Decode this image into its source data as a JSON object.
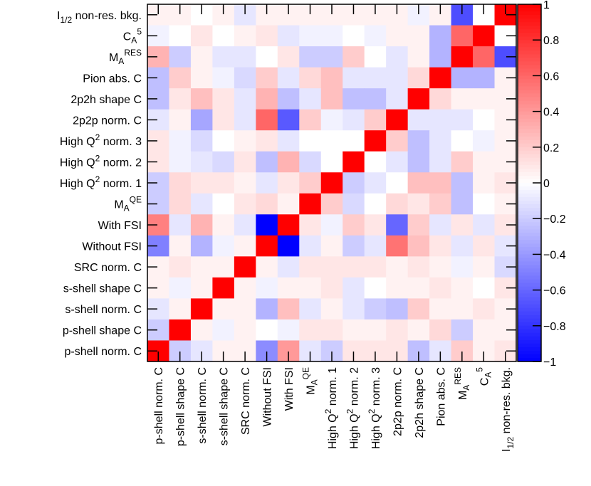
{
  "chart_data": {
    "type": "heatmap",
    "title": "",
    "labels_bottom_to_top": [
      "p-shell norm. C",
      "p-shell shape C",
      "s-shell norm. C",
      "s-shell shape C",
      "SRC norm. C",
      "Without FSI",
      "With FSI",
      "M_A^QE",
      "High Q^2 norm. 1",
      "High Q^2 norm. 2",
      "High Q^2 norm. 3",
      "2p2p norm. C",
      "2p2h shape C",
      "Pion abs. C",
      "M_A^RES",
      "C_A^5",
      "I_1/2 non-res. bkg."
    ],
    "zlim": [
      -1,
      1
    ],
    "colorbar_ticks": [
      "1",
      "0.8",
      "0.6",
      "0.4",
      "0.2",
      "0",
      "−0.2",
      "−0.4",
      "−0.6",
      "−0.8",
      "−1"
    ],
    "matrix_rows_top_to_bottom": [
      [
        0.05,
        0.05,
        0.0,
        0.05,
        -0.1,
        0.05,
        0.05,
        0.05,
        0.05,
        0.05,
        0.05,
        0.05,
        -0.05,
        0.05,
        -0.7,
        0.0,
        1.0
      ],
      [
        -0.05,
        0.0,
        0.1,
        0.0,
        0.05,
        0.1,
        -0.1,
        -0.05,
        -0.05,
        0.0,
        -0.05,
        0.05,
        0.05,
        -0.3,
        0.6,
        1.0,
        0.0
      ],
      [
        0.3,
        -0.2,
        0.05,
        -0.1,
        -0.1,
        0.0,
        0.1,
        -0.2,
        -0.2,
        0.2,
        0.0,
        -0.1,
        0.05,
        -0.3,
        1.0,
        0.6,
        -0.7
      ],
      [
        -0.25,
        0.2,
        0.05,
        -0.05,
        -0.15,
        0.2,
        -0.1,
        0.15,
        0.25,
        -0.1,
        -0.1,
        -0.1,
        0.15,
        1.0,
        -0.3,
        -0.3,
        0.05
      ],
      [
        -0.25,
        0.1,
        0.25,
        0.1,
        -0.1,
        0.3,
        -0.25,
        -0.1,
        0.25,
        -0.25,
        -0.25,
        -0.1,
        1.0,
        0.15,
        0.05,
        0.05,
        0.05
      ],
      [
        -0.1,
        0.05,
        -0.35,
        0.1,
        -0.1,
        0.6,
        -0.65,
        0.2,
        -0.05,
        -0.1,
        0.2,
        1.0,
        -0.1,
        -0.1,
        -0.1,
        0.0,
        0.05
      ],
      [
        0.1,
        -0.05,
        -0.15,
        0.0,
        0.05,
        0.1,
        -0.1,
        0.0,
        0.0,
        0.0,
        1.0,
        0.2,
        -0.25,
        -0.1,
        0.0,
        -0.05,
        0.05
      ],
      [
        0.1,
        -0.05,
        -0.1,
        -0.15,
        0.1,
        -0.25,
        0.3,
        -0.15,
        0.0,
        1.0,
        0.0,
        -0.1,
        -0.25,
        -0.1,
        0.2,
        0.05,
        0.05
      ],
      [
        -0.2,
        0.15,
        0.1,
        0.1,
        0.05,
        -0.1,
        0.1,
        0.2,
        1.0,
        -0.2,
        -0.1,
        0.0,
        0.25,
        0.25,
        -0.25,
        0.05,
        0.1
      ],
      [
        -0.2,
        0.15,
        -0.1,
        0.0,
        0.1,
        0.15,
        0.05,
        1.0,
        0.2,
        -0.15,
        0.0,
        0.15,
        0.1,
        0.2,
        -0.25,
        0.0,
        0.05
      ],
      [
        0.5,
        -0.1,
        0.3,
        0.05,
        -0.1,
        -1.0,
        1.0,
        0.1,
        -0.05,
        0.2,
        0.1,
        -0.6,
        0.2,
        -0.1,
        0.1,
        -0.1,
        0.1
      ],
      [
        -0.5,
        0.05,
        -0.3,
        -0.05,
        0.05,
        1.0,
        -1.0,
        -0.1,
        0.05,
        -0.2,
        -0.1,
        0.55,
        0.25,
        0.1,
        -0.1,
        0.1,
        -0.1
      ],
      [
        0.05,
        0.1,
        0.05,
        0.05,
        1.0,
        0.05,
        -0.1,
        0.1,
        0.1,
        0.1,
        0.1,
        0.05,
        0.1,
        0.05,
        -0.05,
        0.05,
        -0.15
      ],
      [
        0.05,
        -0.05,
        0.05,
        1.0,
        0.05,
        -0.05,
        0.05,
        0.05,
        0.1,
        -0.1,
        0.0,
        0.05,
        0.05,
        0.1,
        0.05,
        0.0,
        0.1
      ],
      [
        -0.1,
        0.05,
        1.0,
        0.05,
        0.05,
        -0.3,
        0.25,
        -0.1,
        0.05,
        -0.1,
        -0.2,
        -0.25,
        0.2,
        0.05,
        0.05,
        0.1,
        0.05
      ],
      [
        -0.2,
        1.0,
        0.05,
        -0.05,
        0.05,
        0.0,
        -0.05,
        0.1,
        0.1,
        0.05,
        0.05,
        0.1,
        0.05,
        0.15,
        -0.2,
        0.05,
        0.05
      ],
      [
        1.0,
        -0.2,
        -0.1,
        0.05,
        0.05,
        -0.45,
        0.4,
        -0.1,
        -0.2,
        0.1,
        0.1,
        0.1,
        -0.25,
        -0.1,
        0.2,
        0.05,
        0.1
      ]
    ]
  }
}
